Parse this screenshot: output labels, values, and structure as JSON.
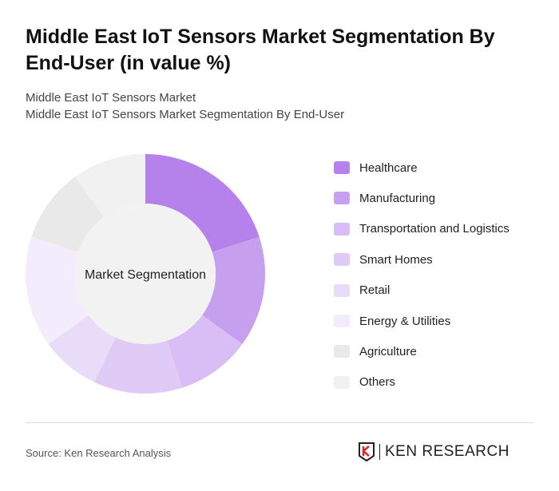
{
  "title": "Middle East IoT Sensors Market Segmentation By End-User (in value %)",
  "subtitle1": "Middle East IoT Sensors Market",
  "subtitle2": "Middle East IoT Sensors Market Segmentation By End-User",
  "source": "Source: Ken Research Analysis",
  "logo_text": "KEN RESEARCH",
  "chart_data": {
    "type": "pie",
    "variant": "donut",
    "center_label": "Market Segmentation",
    "legend_position": "right",
    "categories": [
      "Healthcare",
      "Manufacturing",
      "Transportation and Logistics",
      "Smart Homes",
      "Retail",
      "Energy & Utilities",
      "Agriculture",
      "Others"
    ],
    "values": [
      20,
      15,
      10,
      12,
      8,
      15,
      10,
      10
    ],
    "colors": [
      "#b482ea",
      "#c6a0ee",
      "#d8bef4",
      "#e0cbf6",
      "#e9dcf9",
      "#f2ecfc",
      "#e9e9e9",
      "#f1f1f1"
    ]
  }
}
